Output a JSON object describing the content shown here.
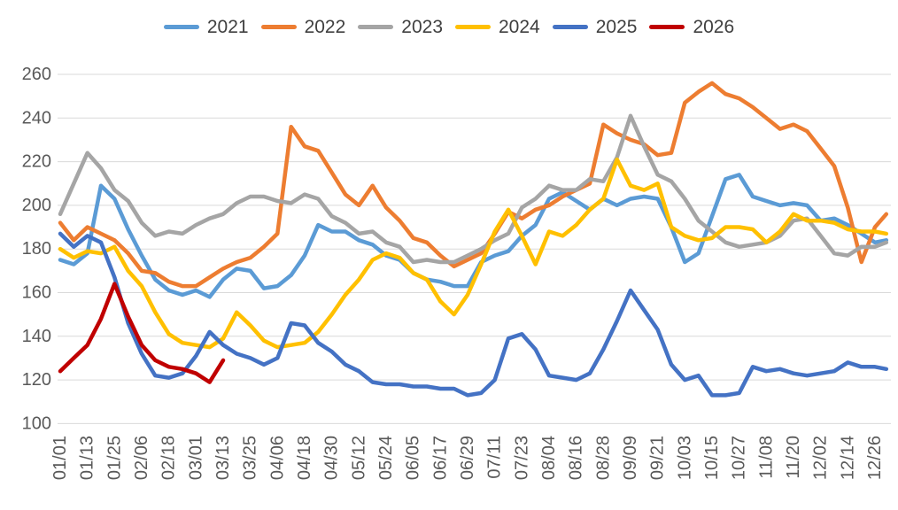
{
  "chart_data": {
    "type": "line",
    "title": "",
    "xlabel": "",
    "ylabel": "",
    "ylim": [
      100,
      260
    ],
    "y_ticks": [
      100,
      120,
      140,
      160,
      180,
      200,
      220,
      240,
      260
    ],
    "grid": true,
    "legend_position": "top",
    "x_tick_interval_days": 12,
    "x_tick_labels": [
      "01/01",
      "01/13",
      "01/25",
      "02/06",
      "02/18",
      "03/01",
      "03/13",
      "03/25",
      "04/06",
      "04/18",
      "04/30",
      "05/12",
      "05/24",
      "06/05",
      "06/17",
      "06/29",
      "07/11",
      "07/23",
      "08/04",
      "08/16",
      "08/28",
      "09/09",
      "09/21",
      "10/03",
      "10/15",
      "10/27",
      "11/08",
      "11/20",
      "12/02",
      "12/14",
      "12/26"
    ],
    "sample_day_step": 6,
    "series": [
      {
        "name": "2021",
        "color": "#5B9BD5",
        "days": [
          0,
          6,
          12,
          18,
          24,
          30,
          36,
          42,
          48,
          54,
          60,
          66,
          72,
          78,
          84,
          90,
          96,
          102,
          108,
          114,
          120,
          126,
          132,
          138,
          144,
          150,
          156,
          162,
          168,
          174,
          180,
          186,
          192,
          198,
          204,
          210,
          216,
          222,
          228,
          234,
          240,
          246,
          252,
          258,
          264,
          270,
          276,
          282,
          288,
          294,
          300,
          306,
          312,
          318,
          324,
          330,
          336,
          342,
          348,
          354,
          360,
          365
        ],
        "values": [
          175,
          173,
          178,
          209,
          203,
          189,
          177,
          166,
          161,
          159,
          161,
          158,
          166,
          171,
          170,
          162,
          163,
          168,
          177,
          191,
          188,
          188,
          184,
          182,
          177,
          175,
          169,
          166,
          165,
          163,
          163,
          174,
          177,
          179,
          186,
          191,
          203,
          206,
          202,
          198,
          203,
          200,
          203,
          204,
          203,
          190,
          174,
          178,
          195,
          212,
          214,
          204,
          202,
          200,
          201,
          200,
          193,
          194,
          191,
          187,
          183,
          184
        ]
      },
      {
        "name": "2022",
        "color": "#ED7D31",
        "days": [
          0,
          6,
          12,
          18,
          24,
          30,
          36,
          42,
          48,
          54,
          60,
          66,
          72,
          78,
          84,
          90,
          96,
          102,
          108,
          114,
          120,
          126,
          132,
          138,
          144,
          150,
          156,
          162,
          168,
          174,
          180,
          186,
          192,
          198,
          204,
          210,
          216,
          222,
          228,
          234,
          240,
          246,
          252,
          258,
          264,
          270,
          276,
          282,
          288,
          294,
          300,
          306,
          312,
          318,
          324,
          330,
          336,
          342,
          348,
          354,
          360,
          365
        ],
        "values": [
          192,
          184,
          190,
          187,
          184,
          178,
          170,
          169,
          165,
          163,
          163,
          167,
          171,
          174,
          176,
          181,
          187,
          236,
          227,
          225,
          215,
          205,
          200,
          209,
          199,
          193,
          185,
          183,
          177,
          172,
          175,
          178,
          187,
          197,
          194,
          198,
          200,
          204,
          207,
          210,
          237,
          233,
          230,
          228,
          223,
          224,
          247,
          252,
          256,
          251,
          249,
          245,
          240,
          235,
          237,
          234,
          226,
          218,
          199,
          174,
          190,
          196
        ]
      },
      {
        "name": "2023",
        "color": "#A5A5A5",
        "days": [
          0,
          6,
          12,
          18,
          24,
          30,
          36,
          42,
          48,
          54,
          60,
          66,
          72,
          78,
          84,
          90,
          96,
          102,
          108,
          114,
          120,
          126,
          132,
          138,
          144,
          150,
          156,
          162,
          168,
          174,
          180,
          186,
          192,
          198,
          204,
          210,
          216,
          222,
          228,
          234,
          240,
          246,
          252,
          258,
          264,
          270,
          276,
          282,
          288,
          294,
          300,
          306,
          312,
          318,
          324,
          330,
          336,
          342,
          348,
          354,
          360,
          365
        ],
        "values": [
          196,
          210,
          224,
          217,
          207,
          202,
          192,
          186,
          188,
          187,
          191,
          194,
          196,
          201,
          204,
          204,
          202,
          201,
          205,
          203,
          195,
          192,
          187,
          188,
          183,
          181,
          174,
          175,
          174,
          174,
          177,
          180,
          184,
          187,
          199,
          203,
          209,
          207,
          207,
          212,
          211,
          222,
          241,
          227,
          214,
          211,
          203,
          193,
          188,
          183,
          181,
          182,
          183,
          186,
          193,
          194,
          186,
          178,
          177,
          181,
          181,
          183
        ]
      },
      {
        "name": "2024",
        "color": "#FFC000",
        "days": [
          0,
          6,
          12,
          18,
          24,
          30,
          36,
          42,
          48,
          54,
          60,
          66,
          72,
          78,
          84,
          90,
          96,
          102,
          108,
          114,
          120,
          126,
          132,
          138,
          144,
          150,
          156,
          162,
          168,
          174,
          180,
          186,
          192,
          198,
          204,
          210,
          216,
          222,
          228,
          234,
          240,
          246,
          252,
          258,
          264,
          270,
          276,
          282,
          288,
          294,
          300,
          306,
          312,
          318,
          324,
          330,
          336,
          342,
          348,
          354,
          360,
          365
        ],
        "values": [
          180,
          176,
          179,
          178,
          181,
          170,
          163,
          151,
          141,
          137,
          136,
          135,
          139,
          151,
          145,
          138,
          135,
          136,
          137,
          142,
          150,
          159,
          166,
          175,
          178,
          176,
          169,
          166,
          156,
          150,
          159,
          173,
          188,
          198,
          186,
          173,
          188,
          186,
          191,
          198,
          203,
          221,
          209,
          207,
          210,
          190,
          186,
          184,
          185,
          190,
          190,
          189,
          183,
          188,
          196,
          193,
          193,
          192,
          189,
          188,
          188,
          187
        ]
      },
      {
        "name": "2025",
        "color": "#4472C4",
        "days": [
          0,
          6,
          12,
          18,
          24,
          30,
          36,
          42,
          48,
          54,
          60,
          66,
          72,
          78,
          84,
          90,
          96,
          102,
          108,
          114,
          120,
          126,
          132,
          138,
          144,
          150,
          156,
          162,
          168,
          174,
          180,
          186,
          192,
          198,
          204,
          210,
          216,
          222,
          228,
          234,
          240,
          246,
          252,
          258,
          264,
          270,
          276,
          282,
          288,
          294,
          300,
          306,
          312,
          318,
          324,
          330,
          336,
          342,
          348,
          354,
          360,
          365
        ],
        "values": [
          187,
          181,
          186,
          183,
          167,
          146,
          132,
          122,
          121,
          123,
          131,
          142,
          136,
          132,
          130,
          127,
          130,
          146,
          145,
          137,
          133,
          127,
          124,
          119,
          118,
          118,
          117,
          117,
          116,
          116,
          113,
          114,
          120,
          139,
          141,
          134,
          122,
          121,
          120,
          123,
          134,
          147,
          161,
          152,
          143,
          127,
          120,
          122,
          113,
          113,
          114,
          126,
          124,
          125,
          123,
          122,
          123,
          124,
          128,
          126,
          126,
          125
        ]
      },
      {
        "name": "2026",
        "color": "#C00000",
        "days": [
          0,
          6,
          12,
          18,
          24,
          30,
          36,
          42,
          48,
          54,
          60,
          66,
          72
        ],
        "values": [
          124,
          130,
          136,
          148,
          164,
          149,
          136,
          129,
          126,
          125,
          123,
          119,
          129
        ]
      }
    ]
  },
  "colors": {
    "background": "#FFFFFF",
    "gridline": "#D9D9D9",
    "axis_text": "#595959",
    "legend_text": "#3F3F3F"
  }
}
